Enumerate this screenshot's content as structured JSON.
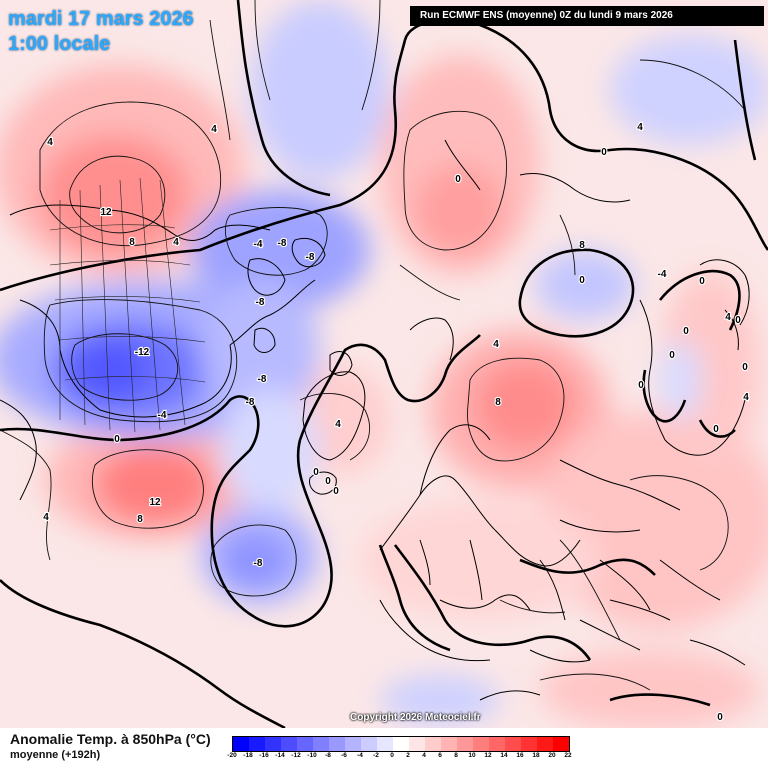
{
  "header": {
    "date": "mardi 17 mars 2026",
    "time": "1:00 locale",
    "run": "Run ECMWF ENS (moyenne) 0Z du lundi 9 mars 2026"
  },
  "copyright": "Copyright 2026 Meteociel.fr",
  "legend": {
    "title": "Anomalie Temp. à 850hPa (°C)",
    "subtitle": "moyenne  (+192h)",
    "ticks": [
      "-20",
      "-18",
      "-16",
      "-14",
      "-12",
      "-10",
      "-8",
      "-6",
      "-4",
      "-2",
      "0",
      "2",
      "4",
      "6",
      "8",
      "10",
      "12",
      "14",
      "16",
      "18",
      "20",
      "22"
    ],
    "colors": [
      "#0000ff",
      "#1a1aff",
      "#3333ff",
      "#4d4dff",
      "#6666ff",
      "#7f7fff",
      "#9999ff",
      "#b3b3ff",
      "#ccccff",
      "#e6e6ff",
      "#ffffff",
      "#ffe6e6",
      "#ffcccc",
      "#ffb3b3",
      "#ff9999",
      "#ff7f7f",
      "#ff6666",
      "#ff4d4d",
      "#ff3333",
      "#ff1a1a",
      "#ff0000"
    ]
  },
  "map": {
    "contour_labels": [
      {
        "text": "4",
        "lon_hint": "NE Pacific"
      },
      {
        "text": "12",
        "lon_hint": "Alaska"
      },
      {
        "text": "8",
        "lon_hint": "Alaska"
      },
      {
        "text": "4",
        "lon_hint": "Alaska"
      },
      {
        "text": "-4",
        "lon_hint": "Arctic"
      },
      {
        "text": "-8",
        "lon_hint": "Arctic"
      },
      {
        "text": "-8",
        "lon_hint": "Arctic"
      },
      {
        "text": "-12",
        "lon_hint": "Canada"
      },
      {
        "text": "-8",
        "lon_hint": "Canada"
      },
      {
        "text": "-8",
        "lon_hint": "Canada"
      },
      {
        "text": "-8",
        "lon_hint": "Canada"
      },
      {
        "text": "-4",
        "lon_hint": "Canada"
      },
      {
        "text": "0",
        "lon_hint": "USA"
      },
      {
        "text": "4",
        "lon_hint": "USA"
      },
      {
        "text": "12",
        "lon_hint": "USA"
      },
      {
        "text": "8",
        "lon_hint": "USA"
      },
      {
        "text": "-8",
        "lon_hint": "Atlantic"
      },
      {
        "text": "4",
        "lon_hint": "Greenland"
      },
      {
        "text": "0",
        "lon_hint": "Greenland"
      },
      {
        "text": "0",
        "lon_hint": "Iceland"
      },
      {
        "text": "0",
        "lon_hint": "Iceland"
      },
      {
        "text": "0",
        "lon_hint": "Iceland"
      },
      {
        "text": "8",
        "lon_hint": "Siberia"
      },
      {
        "text": "0",
        "lon_hint": "Siberia"
      },
      {
        "text": "-4",
        "lon_hint": "Siberia"
      },
      {
        "text": "0",
        "lon_hint": "Siberia"
      },
      {
        "text": "0",
        "lon_hint": "Asia"
      },
      {
        "text": "0",
        "lon_hint": "Asia"
      },
      {
        "text": "0",
        "lon_hint": "Asia"
      },
      {
        "text": "4",
        "lon_hint": "Asia"
      },
      {
        "text": "0",
        "lon_hint": "Asia"
      },
      {
        "text": "0",
        "lon_hint": "Asia"
      },
      {
        "text": "0",
        "lon_hint": "Asia"
      },
      {
        "text": "4",
        "lon_hint": "Asia"
      },
      {
        "text": "0",
        "lon_hint": "Asia"
      },
      {
        "text": "8",
        "lon_hint": "Scandinavia"
      },
      {
        "text": "4",
        "lon_hint": "Scandinavia"
      },
      {
        "text": "4",
        "lon_hint": "Europe"
      },
      {
        "text": "0",
        "lon_hint": "Pacific"
      },
      {
        "text": "4",
        "lon_hint": "Pacific"
      }
    ]
  }
}
